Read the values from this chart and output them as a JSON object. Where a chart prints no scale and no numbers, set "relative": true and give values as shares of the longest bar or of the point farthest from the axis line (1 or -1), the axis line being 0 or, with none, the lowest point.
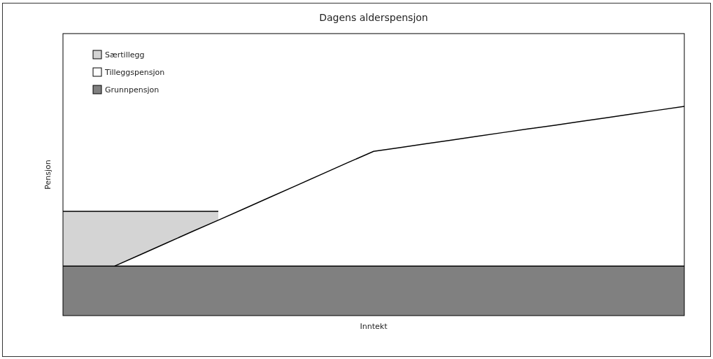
{
  "chart_data": {
    "type": "area",
    "title": "Dagens alderspensjon",
    "xlabel": "Inntekt",
    "ylabel": "Pensjon",
    "relative": true,
    "legend": "top left",
    "categories": [
      null,
      null,
      null,
      null,
      null,
      null,
      null,
      null,
      null,
      null,
      null,
      null,
      null,
      null,
      null,
      null,
      null,
      null,
      null,
      null,
      null,
      null,
      null,
      null,
      null
    ],
    "series": [
      {
        "name": "Særtillegg",
        "color": "#d4d4d4",
        "values": [
          0.498,
          0.498,
          0.498,
          0.498,
          0.498,
          0.498,
          0.498,
          null,
          null,
          null,
          null,
          null,
          null,
          null,
          null,
          null,
          null,
          null,
          null,
          null,
          null,
          null,
          null,
          null,
          null
        ]
      },
      {
        "name": "Tilleggspensjon",
        "color": "#ffffff",
        "values": [
          null,
          null,
          0.237,
          0.292,
          0.347,
          0.402,
          0.456,
          0.511,
          0.566,
          0.621,
          0.676,
          0.731,
          0.785,
          0.803,
          0.821,
          0.839,
          0.857,
          0.875,
          0.893,
          0.91,
          0.928,
          0.946,
          0.964,
          0.982,
          1
        ]
      },
      {
        "name": "Grunnpensjon",
        "color": "#808080",
        "values": [
          0.237,
          0.237,
          0.237,
          0.237,
          0.237,
          0.237,
          0.237,
          0.237,
          0.237,
          0.237,
          0.237,
          0.237,
          0.237,
          0.237,
          0.237,
          0.237,
          0.237,
          0.237,
          0.237,
          0.237,
          0.237,
          0.237,
          0.237,
          0.237,
          0.237
        ]
      }
    ]
  }
}
